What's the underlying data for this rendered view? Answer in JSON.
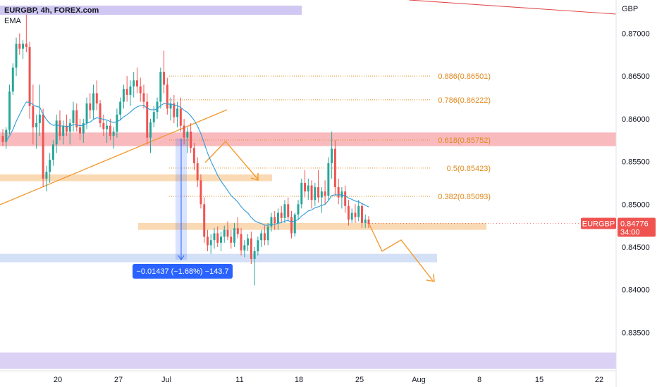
{
  "chart_data": {
    "type": "candlestick",
    "legend": {
      "symbol_line": "EURGBP, 4h, FOREX.com",
      "indicator": "EMA"
    },
    "currency_label": "GBP",
    "ylim": [
      0.8305,
      0.8735
    ],
    "y_ticks": [
      {
        "value": 0.87,
        "label": "0.87000"
      },
      {
        "value": 0.865,
        "label": "0.86500"
      },
      {
        "value": 0.86,
        "label": "0.86000"
      },
      {
        "value": 0.855,
        "label": "0.85500"
      },
      {
        "value": 0.85,
        "label": "0.85000"
      },
      {
        "value": 0.845,
        "label": "0.84500"
      },
      {
        "value": 0.84,
        "label": "0.84000"
      },
      {
        "value": 0.835,
        "label": "0.83500"
      }
    ],
    "x_ticks": [
      {
        "label": "20",
        "x": 82
      },
      {
        "label": "27",
        "x": 168
      },
      {
        "label": "Jul",
        "x": 236
      },
      {
        "label": "11",
        "x": 340
      },
      {
        "label": "18",
        "x": 424
      },
      {
        "label": "25",
        "x": 510
      },
      {
        "label": "Aug",
        "x": 594
      },
      {
        "label": "8",
        "x": 680
      },
      {
        "label": "15",
        "x": 765
      },
      {
        "label": "22",
        "x": 850
      }
    ],
    "last_price": {
      "symbol": "EURGBP",
      "value": "0.84776",
      "countdown": "34:00",
      "price": 0.84776
    },
    "fib_levels": [
      {
        "label": "0.886(0.86501)",
        "price": 0.86501
      },
      {
        "label": "0.786(0.86222)",
        "price": 0.86222
      },
      {
        "label": "0.618(0.85752)",
        "price": 0.85752
      },
      {
        "label": "0.5(0.85423)",
        "price": 0.85423
      },
      {
        "label": "0.382(0.85093)",
        "price": 0.85093
      }
    ],
    "zones": [
      {
        "name": "resistance-zone",
        "from": 0.8568,
        "to": 0.8584,
        "color": "#f7a9ad"
      },
      {
        "name": "orange-zone-upper",
        "from": 0.8527,
        "to": 0.8535,
        "color": "#f9cfa3"
      },
      {
        "name": "orange-zone-lower",
        "from": 0.847,
        "to": 0.8478,
        "color": "#f9cfa3"
      },
      {
        "name": "blue-zone",
        "from": 0.8432,
        "to": 0.8442,
        "color": "#c9d8f2"
      }
    ],
    "measure_label": "−0.01437 (−1.68%) −143.7",
    "colors": {
      "up": "#26a69a",
      "down": "#ef5350",
      "ema": "#2f9bd8",
      "fib": "#e08a1e",
      "trend": "#f29a2e",
      "badge": "#ef5350",
      "measure": "#2962ff"
    },
    "candles": [
      [
        0.858,
        0.8588,
        0.8568,
        0.8573
      ],
      [
        0.8573,
        0.859,
        0.8565,
        0.8587
      ],
      [
        0.8587,
        0.864,
        0.8582,
        0.8632
      ],
      [
        0.8632,
        0.8665,
        0.8628,
        0.866
      ],
      [
        0.866,
        0.8695,
        0.865,
        0.8688
      ],
      [
        0.8688,
        0.87,
        0.8675,
        0.8682
      ],
      [
        0.8682,
        0.8692,
        0.867,
        0.8688
      ],
      [
        0.8688,
        0.873,
        0.8678,
        0.8684
      ],
      [
        0.8684,
        0.869,
        0.86,
        0.8615
      ],
      [
        0.8615,
        0.864,
        0.857,
        0.859
      ],
      [
        0.859,
        0.8605,
        0.8565,
        0.8595
      ],
      [
        0.8595,
        0.864,
        0.858,
        0.8605
      ],
      [
        0.8605,
        0.8612,
        0.852,
        0.853
      ],
      [
        0.853,
        0.8545,
        0.8515,
        0.8538
      ],
      [
        0.8538,
        0.856,
        0.8525,
        0.8552
      ],
      [
        0.8552,
        0.8575,
        0.8545,
        0.857
      ],
      [
        0.857,
        0.8605,
        0.856,
        0.8598
      ],
      [
        0.8598,
        0.861,
        0.8575,
        0.858
      ],
      [
        0.858,
        0.8598,
        0.857,
        0.8592
      ],
      [
        0.8592,
        0.8605,
        0.858,
        0.8585
      ],
      [
        0.8585,
        0.86,
        0.857,
        0.8595
      ],
      [
        0.8595,
        0.862,
        0.8585,
        0.861
      ],
      [
        0.861,
        0.8618,
        0.8585,
        0.859
      ],
      [
        0.859,
        0.86,
        0.8575,
        0.8583
      ],
      [
        0.8583,
        0.86,
        0.8572,
        0.8595
      ],
      [
        0.8595,
        0.8625,
        0.8588,
        0.8618
      ],
      [
        0.8618,
        0.863,
        0.86,
        0.861
      ],
      [
        0.861,
        0.864,
        0.86,
        0.863
      ],
      [
        0.863,
        0.8645,
        0.861,
        0.8618
      ],
      [
        0.8618,
        0.8622,
        0.859,
        0.8595
      ],
      [
        0.8595,
        0.8605,
        0.858,
        0.8588
      ],
      [
        0.8588,
        0.8598,
        0.8572,
        0.8592
      ],
      [
        0.8592,
        0.86,
        0.8575,
        0.858
      ],
      [
        0.858,
        0.859,
        0.8565,
        0.8585
      ],
      [
        0.8585,
        0.8612,
        0.8578,
        0.8605
      ],
      [
        0.8605,
        0.8625,
        0.8598,
        0.862
      ],
      [
        0.862,
        0.864,
        0.8612,
        0.8635
      ],
      [
        0.8635,
        0.865,
        0.862,
        0.8628
      ],
      [
        0.8628,
        0.8645,
        0.8615,
        0.8638
      ],
      [
        0.8638,
        0.8655,
        0.8625,
        0.8645
      ],
      [
        0.8645,
        0.866,
        0.863,
        0.8638
      ],
      [
        0.8638,
        0.8648,
        0.862,
        0.863
      ],
      [
        0.863,
        0.864,
        0.8612,
        0.862
      ],
      [
        0.862,
        0.863,
        0.857,
        0.8578
      ],
      [
        0.8578,
        0.86,
        0.856,
        0.8596
      ],
      [
        0.8596,
        0.8615,
        0.859,
        0.8608
      ],
      [
        0.8608,
        0.8625,
        0.86,
        0.862
      ],
      [
        0.862,
        0.866,
        0.8612,
        0.8655
      ],
      [
        0.8655,
        0.868,
        0.863,
        0.864
      ],
      [
        0.864,
        0.8648,
        0.8605,
        0.8612
      ],
      [
        0.8612,
        0.8625,
        0.8598,
        0.8618
      ],
      [
        0.8618,
        0.8628,
        0.8595,
        0.8602
      ],
      [
        0.8602,
        0.862,
        0.859,
        0.8612
      ],
      [
        0.8612,
        0.8625,
        0.8585,
        0.8592
      ],
      [
        0.8592,
        0.86,
        0.857,
        0.8578
      ],
      [
        0.8578,
        0.859,
        0.856,
        0.8585
      ],
      [
        0.8585,
        0.8595,
        0.856,
        0.8566
      ],
      [
        0.8566,
        0.8572,
        0.854,
        0.8548
      ],
      [
        0.8548,
        0.8555,
        0.852,
        0.8528
      ],
      [
        0.8528,
        0.8535,
        0.8495,
        0.85
      ],
      [
        0.85,
        0.8508,
        0.8455,
        0.8462
      ],
      [
        0.8462,
        0.847,
        0.8445,
        0.8452
      ],
      [
        0.8452,
        0.8465,
        0.8442,
        0.8458
      ],
      [
        0.8458,
        0.8472,
        0.8448,
        0.8466
      ],
      [
        0.8466,
        0.8474,
        0.845,
        0.8455
      ],
      [
        0.8455,
        0.8468,
        0.8445,
        0.8462
      ],
      [
        0.8462,
        0.8475,
        0.8455,
        0.847
      ],
      [
        0.847,
        0.848,
        0.8458,
        0.8462
      ],
      [
        0.8462,
        0.847,
        0.8448,
        0.8455
      ],
      [
        0.8455,
        0.8478,
        0.845,
        0.8472
      ],
      [
        0.8472,
        0.8485,
        0.846,
        0.8465
      ],
      [
        0.8465,
        0.8472,
        0.844,
        0.8446
      ],
      [
        0.8446,
        0.8458,
        0.8438,
        0.8452
      ],
      [
        0.8452,
        0.8465,
        0.8445,
        0.846
      ],
      [
        0.846,
        0.8468,
        0.843,
        0.8436
      ],
      [
        0.8436,
        0.845,
        0.8405,
        0.8445
      ],
      [
        0.8445,
        0.8462,
        0.844,
        0.8458
      ],
      [
        0.8458,
        0.847,
        0.845,
        0.8466
      ],
      [
        0.8466,
        0.8475,
        0.8452,
        0.8458
      ],
      [
        0.8458,
        0.8478,
        0.8452,
        0.8474
      ],
      [
        0.8474,
        0.849,
        0.8468,
        0.8485
      ],
      [
        0.8485,
        0.8492,
        0.847,
        0.8478
      ],
      [
        0.8478,
        0.8495,
        0.847,
        0.849
      ],
      [
        0.849,
        0.8498,
        0.8478,
        0.8484
      ],
      [
        0.8484,
        0.8505,
        0.8478,
        0.85
      ],
      [
        0.85,
        0.8508,
        0.848,
        0.8485
      ],
      [
        0.8485,
        0.8492,
        0.846,
        0.8466
      ],
      [
        0.8466,
        0.849,
        0.8462,
        0.8488
      ],
      [
        0.8488,
        0.8505,
        0.8482,
        0.85
      ],
      [
        0.85,
        0.853,
        0.8495,
        0.8525
      ],
      [
        0.8525,
        0.854,
        0.8508,
        0.8515
      ],
      [
        0.8515,
        0.853,
        0.8505,
        0.8522
      ],
      [
        0.8522,
        0.8528,
        0.8495,
        0.8505
      ],
      [
        0.8505,
        0.8525,
        0.8498,
        0.852
      ],
      [
        0.852,
        0.854,
        0.8502,
        0.8508
      ],
      [
        0.8508,
        0.852,
        0.849,
        0.8515
      ],
      [
        0.8515,
        0.8528,
        0.85,
        0.851
      ],
      [
        0.851,
        0.8555,
        0.8505,
        0.8548
      ],
      [
        0.8548,
        0.8585,
        0.853,
        0.8565
      ],
      [
        0.8565,
        0.8575,
        0.851,
        0.852
      ],
      [
        0.852,
        0.853,
        0.85,
        0.8508
      ],
      [
        0.8508,
        0.852,
        0.8495,
        0.8515
      ],
      [
        0.8515,
        0.8522,
        0.849,
        0.8498
      ],
      [
        0.8498,
        0.8505,
        0.8475,
        0.8482
      ],
      [
        0.8482,
        0.8495,
        0.8478,
        0.849
      ],
      [
        0.849,
        0.85,
        0.8478,
        0.8485
      ],
      [
        0.8485,
        0.8505,
        0.848,
        0.8498
      ],
      [
        0.8498,
        0.8502,
        0.8472,
        0.8478
      ],
      [
        0.8478,
        0.8488,
        0.8472,
        0.8482
      ],
      [
        0.8482,
        0.8486,
        0.8472,
        0.8477
      ]
    ]
  }
}
